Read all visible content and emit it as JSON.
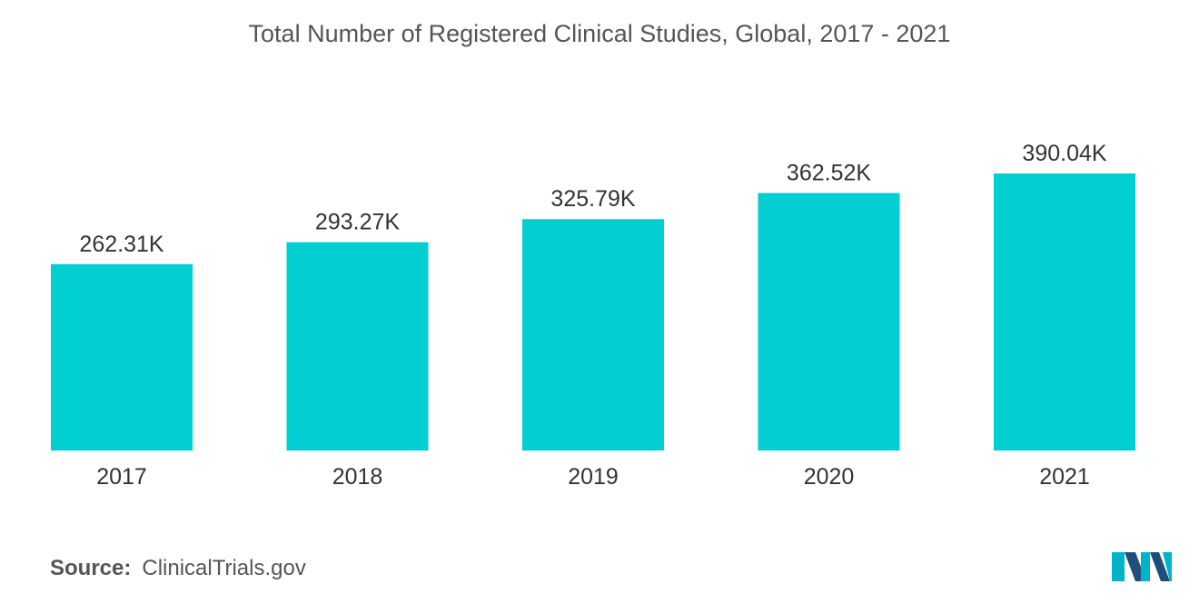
{
  "chart_data": {
    "type": "bar",
    "title": "Total Number of Registered Clinical Studies, Global, 2017 - 2021",
    "categories": [
      "2017",
      "2018",
      "2019",
      "2020",
      "2021"
    ],
    "values": [
      262.31,
      293.27,
      325.79,
      362.52,
      390.04
    ],
    "value_labels": [
      "262.31K",
      "293.27K",
      "325.79K",
      "362.52K",
      "390.04K"
    ],
    "unit": "K",
    "xlabel": "",
    "ylabel": "",
    "ylim": [
      0,
      390.04
    ],
    "grid": false,
    "legend": "none",
    "bar_color": "#00ced1"
  },
  "source": {
    "label": "Source:",
    "value": "ClinicalTrials.gov"
  },
  "colors": {
    "bar": "#00ced1",
    "logo_dark": "#1f4e79",
    "logo_light": "#00b3c8"
  },
  "logo": {
    "icon": "mordor-intelligence-logo-icon"
  }
}
